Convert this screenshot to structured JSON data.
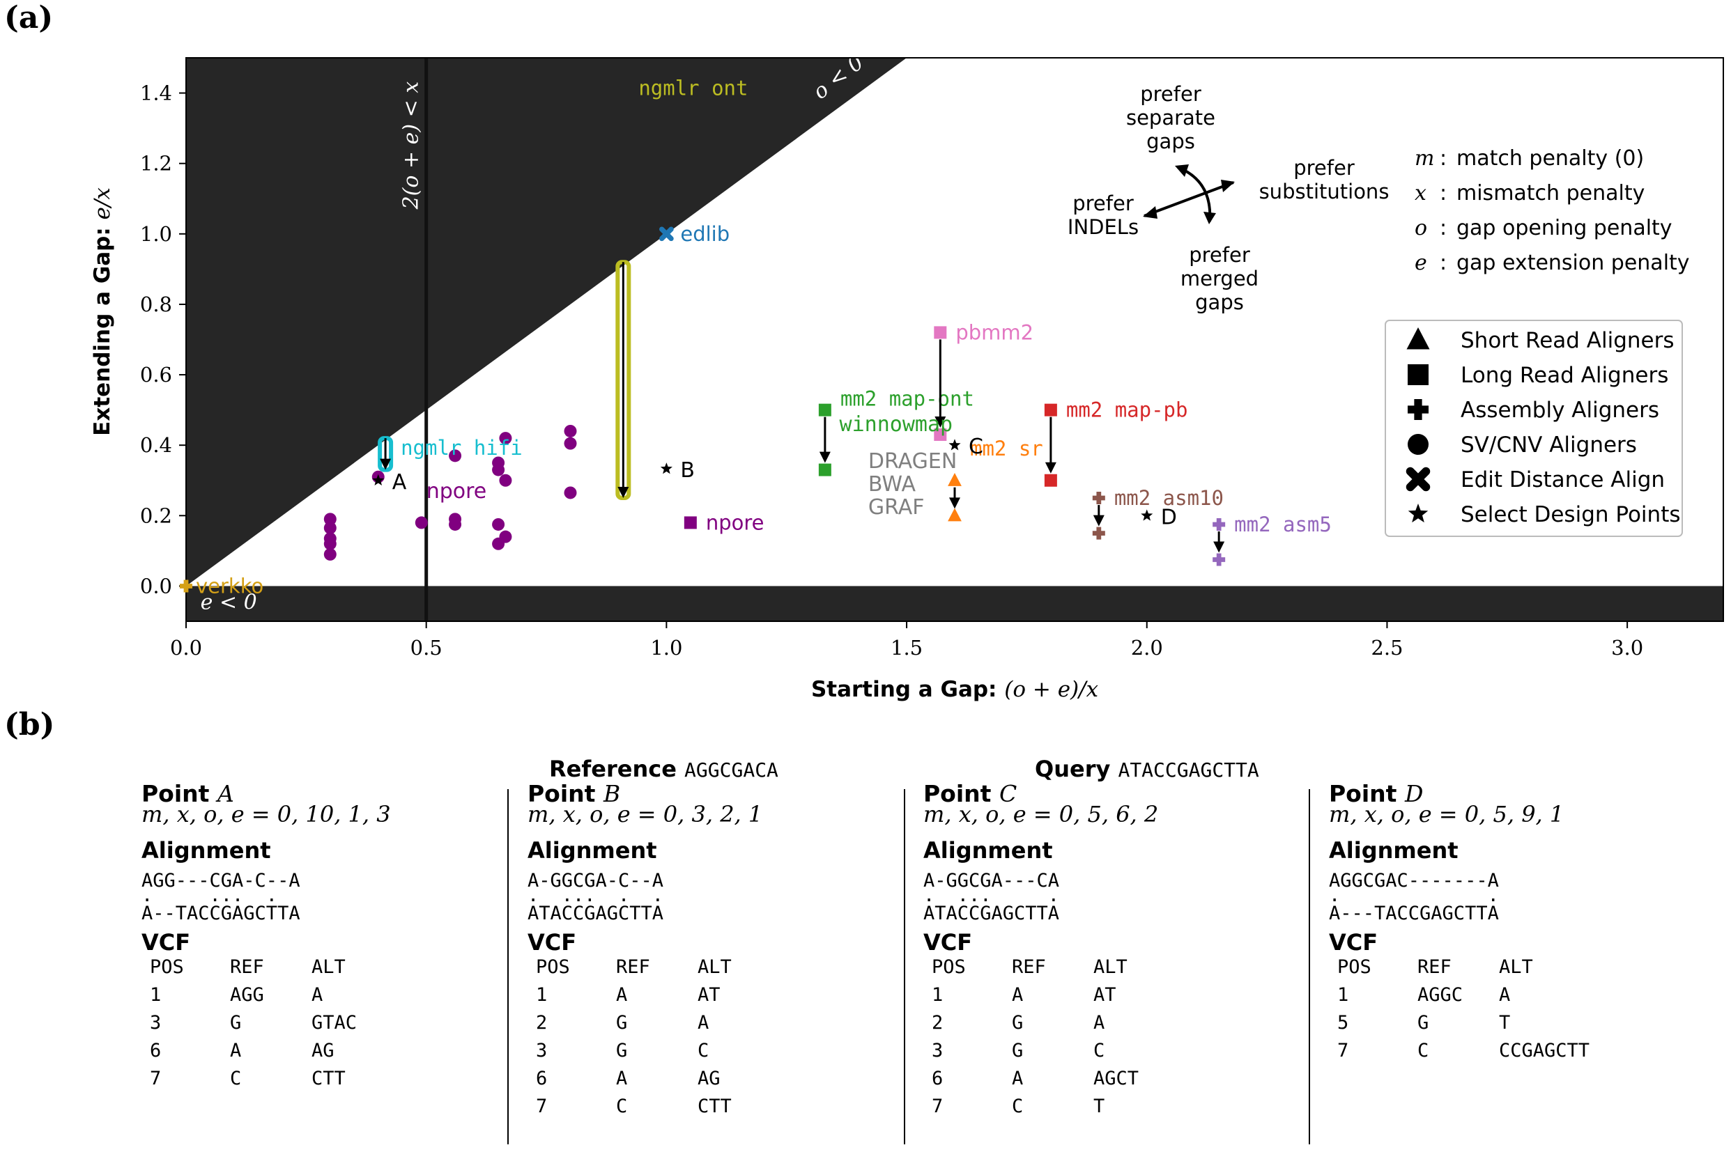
{
  "panel_a_label": "(a)",
  "panel_b_label": "(b)",
  "chart_data": {
    "type": "scatter",
    "xlabel": "Starting a Gap:",
    "xlabel_math": "(o + e)/x",
    "ylabel": "Extending a Gap:",
    "ylabel_math": "e/x",
    "xlim": [
      0,
      3.2
    ],
    "ylim": [
      -0.1,
      1.5
    ],
    "x_ticks": [
      "0.0",
      "0.5",
      "1.0",
      "1.5",
      "2.0",
      "2.5",
      "3.0"
    ],
    "y_ticks": [
      "0.0",
      "0.2",
      "0.4",
      "0.6",
      "0.8",
      "1.0",
      "1.2",
      "1.4"
    ],
    "regions": {
      "o_neg_label": "o < 0",
      "e_neg_label": "e < 0",
      "vline_label": "2(o + e) < x"
    },
    "colors": {
      "verkko": "#d4a017",
      "edlib": "#1f77b4",
      "ngmlr_ont": "#bcbd22",
      "ngmlr_hifi": "#17becf",
      "npore": "#800080",
      "mm2_map_ont": "#2ca02c",
      "pbmm2": "#e377c2",
      "mm2_sr": "#ff7f0e",
      "mm2_map_pb": "#d62728",
      "mm2_asm10": "#8c564b",
      "mm2_asm5": "#9467bd",
      "dragen": "#7f7f7f"
    },
    "sv_points": [
      [
        0.3,
        0.19
      ],
      [
        0.3,
        0.165
      ],
      [
        0.3,
        0.135
      ],
      [
        0.3,
        0.12
      ],
      [
        0.3,
        0.09
      ],
      [
        0.4,
        0.31
      ],
      [
        0.49,
        0.18
      ],
      [
        0.56,
        0.37
      ],
      [
        0.56,
        0.19
      ],
      [
        0.56,
        0.175
      ],
      [
        0.65,
        0.35
      ],
      [
        0.65,
        0.33
      ],
      [
        0.65,
        0.175
      ],
      [
        0.65,
        0.12
      ],
      [
        0.665,
        0.42
      ],
      [
        0.665,
        0.3
      ],
      [
        0.665,
        0.14
      ],
      [
        0.8,
        0.44
      ],
      [
        0.8,
        0.405
      ],
      [
        0.8,
        0.265
      ]
    ],
    "aligners": [
      {
        "key": "verkko",
        "label": "verkko",
        "mono": false,
        "marker": "plus",
        "from": [
          0.0,
          0.0
        ],
        "to": null
      },
      {
        "key": "edlib",
        "label": "edlib",
        "mono": false,
        "marker": "x",
        "from": [
          1.0,
          1.0
        ],
        "to": null
      },
      {
        "key": "ngmlr_ont",
        "label": "ngmlr ont",
        "mono": true,
        "marker": "hexagon",
        "from": [
          0.91,
          0.92
        ],
        "to": [
          0.91,
          0.25
        ]
      },
      {
        "key": "ngmlr_hifi",
        "label": "ngmlr hifi",
        "mono": true,
        "marker": "hexagon",
        "from": [
          0.415,
          0.42
        ],
        "to": [
          0.415,
          0.33
        ]
      },
      {
        "key": "npore",
        "label": "npore",
        "mono": false,
        "marker": "square",
        "from": [
          1.05,
          0.18
        ],
        "to": null
      },
      {
        "key": "mm2_map_ont",
        "label": "mm2 map-ont",
        "mono": true,
        "marker": "square",
        "from": [
          1.33,
          0.5
        ],
        "to": [
          1.33,
          0.33
        ]
      },
      {
        "key": "pbmm2",
        "label": "pbmm2",
        "mono": false,
        "marker": "square",
        "from": [
          1.57,
          0.72
        ],
        "to": [
          1.57,
          0.43
        ]
      },
      {
        "key": "mm2_sr",
        "label": "mm2 sr",
        "mono": true,
        "marker": "triangle",
        "from": [
          1.6,
          0.3
        ],
        "to": [
          1.6,
          0.2
        ]
      },
      {
        "key": "mm2_map_pb",
        "label": "mm2 map-pb",
        "mono": true,
        "marker": "square",
        "from": [
          1.8,
          0.5
        ],
        "to": [
          1.8,
          0.3
        ]
      },
      {
        "key": "mm2_asm10",
        "label": "mm2 asm10",
        "mono": true,
        "marker": "plus",
        "from": [
          1.9,
          0.25
        ],
        "to": [
          1.9,
          0.15
        ]
      },
      {
        "key": "mm2_asm5",
        "label": "mm2 asm5",
        "mono": true,
        "marker": "plus",
        "from": [
          2.15,
          0.175
        ],
        "to": [
          2.15,
          0.075
        ]
      }
    ],
    "text_labels": [
      {
        "text": "npore",
        "x": 0.5,
        "y": 0.25,
        "color": "npore"
      },
      {
        "text": "winnowmap",
        "x": 1.36,
        "y": 0.44,
        "color": "mm2_map_ont",
        "mono": true
      },
      {
        "text": "DRAGEN",
        "x": 1.42,
        "y": 0.335,
        "color": "dragen"
      },
      {
        "text": "BWA",
        "x": 1.42,
        "y": 0.27,
        "color": "dragen"
      },
      {
        "text": "GRAF",
        "x": 1.42,
        "y": 0.205,
        "color": "dragen"
      }
    ],
    "design_points": [
      {
        "label": "A",
        "x": 0.4,
        "y": 0.3
      },
      {
        "label": "B",
        "x": 1.0,
        "y": 0.333
      },
      {
        "label": "C",
        "x": 1.6,
        "y": 0.4
      },
      {
        "label": "D",
        "x": 2.0,
        "y": 0.2
      }
    ],
    "direction_labels": {
      "separate": [
        "prefer",
        "separate",
        "gaps"
      ],
      "substitutions": [
        "prefer",
        "substitutions"
      ],
      "indels": [
        "prefer",
        "INDELs"
      ],
      "merged": [
        "prefer",
        "merged",
        "gaps"
      ]
    },
    "definitions": [
      {
        "sym": "m",
        "text": "match penalty (0)"
      },
      {
        "sym": "x",
        "text": "mismatch penalty"
      },
      {
        "sym": "o",
        "text": "gap opening penalty"
      },
      {
        "sym": "e",
        "text": "gap extension penalty"
      }
    ],
    "legend": {
      "position": "right",
      "entries": [
        {
          "marker": "triangle",
          "label": "Short Read Aligners"
        },
        {
          "marker": "square",
          "label": "Long Read Aligners"
        },
        {
          "marker": "plus",
          "label": "Assembly Aligners"
        },
        {
          "marker": "circle",
          "label": "SV/CNV Aligners"
        },
        {
          "marker": "x",
          "label": "Edit Distance Align"
        },
        {
          "marker": "star",
          "label": "Select Design Points"
        }
      ]
    }
  },
  "panel_b": {
    "reference_label": "Reference",
    "reference_seq": "AGGCGACA",
    "query_label": "Query",
    "query_seq": "ATACCGAGCTTA",
    "alignment_label": "Alignment",
    "vcf_label": "VCF",
    "vcf_headers": [
      "POS",
      "REF",
      "ALT"
    ],
    "points": [
      {
        "title": "Point",
        "name": "A",
        "params": "m, x, o, e = 0, 10, 1, 3",
        "align_ref": "AGG---CGA-C--A",
        "align_dots": ".     ...  .  ",
        "align_query": "A--TACCGAGCTTA",
        "vcf": [
          [
            "1",
            "AGG",
            "A"
          ],
          [
            "3",
            "G",
            "GTAC"
          ],
          [
            "6",
            "A",
            "AG"
          ],
          [
            "7",
            "C",
            "CTT"
          ]
        ]
      },
      {
        "title": "Point",
        "name": "B",
        "params": "m, x, o, e = 0, 3, 2, 1",
        "align_ref": "A-GGCGA-C--A",
        "align_dots": ".  ...  .  .",
        "align_query": "ATACCGAGCTTA",
        "vcf": [
          [
            "1",
            "A",
            "AT"
          ],
          [
            "2",
            "G",
            "A"
          ],
          [
            "3",
            "G",
            "C"
          ],
          [
            "6",
            "A",
            "AG"
          ],
          [
            "7",
            "C",
            "CTT"
          ]
        ]
      },
      {
        "title": "Point",
        "name": "C",
        "params": "m, x, o, e = 0, 5, 6, 2",
        "align_ref": "A-GGCGA---CA",
        "align_dots": ".  ...     .",
        "align_query": "ATACCGAGCTTA",
        "vcf": [
          [
            "1",
            "A",
            "AT"
          ],
          [
            "2",
            "G",
            "A"
          ],
          [
            "3",
            "G",
            "C"
          ],
          [
            "6",
            "A",
            "AGCT"
          ],
          [
            "7",
            "C",
            "T"
          ]
        ]
      },
      {
        "title": "Point",
        "name": "D",
        "params": "m, x, o, e = 0, 5, 9, 1",
        "align_ref": "AGGCGAC-------A",
        "align_dots": ".             .",
        "align_query": "A---TACCGAGCTTA",
        "vcf": [
          [
            "1",
            "AGGC",
            "A"
          ],
          [
            "5",
            "G",
            "T"
          ],
          [
            "7",
            "C",
            "CCGAGCTT"
          ]
        ]
      }
    ]
  }
}
